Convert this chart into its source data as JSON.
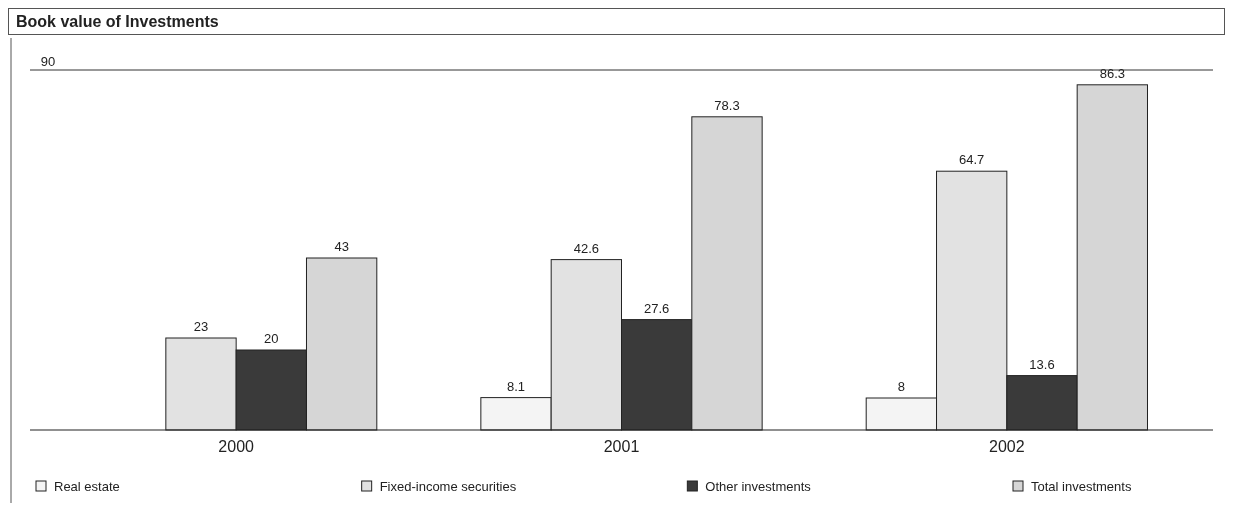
{
  "chart_data": {
    "type": "bar",
    "title": "Book value of Investments",
    "categories": [
      "2000",
      "2001",
      "2002"
    ],
    "series": [
      {
        "name": "Real estate",
        "color": "#f4f4f4",
        "values": [
          null,
          8.1,
          8
        ]
      },
      {
        "name": "Fixed-income securities",
        "color": "#e2e2e2",
        "values": [
          23,
          42.6,
          64.7
        ]
      },
      {
        "name": "Other investments",
        "color": "#3a3a3a",
        "values": [
          20,
          27.6,
          13.6
        ]
      },
      {
        "name": "Total investments",
        "color": "#d6d6d6",
        "values": [
          43,
          78.3,
          86.3
        ]
      }
    ],
    "ylim": [
      0,
      90
    ],
    "yticks": [
      90
    ],
    "grid": false,
    "data_labels": true,
    "legend": "bottom"
  }
}
